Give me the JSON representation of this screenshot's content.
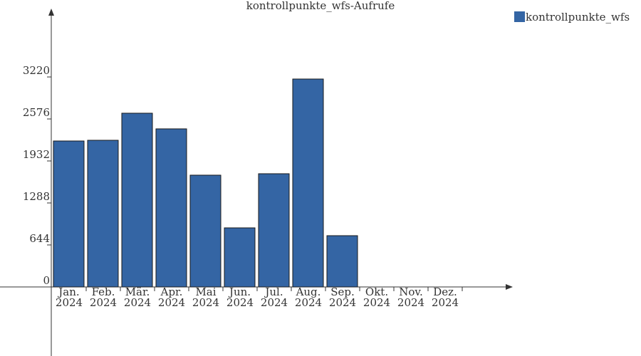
{
  "chart_data": {
    "type": "bar",
    "title": "kontrollpunkte_wfs-Aufrufe",
    "categories": [
      "Jan.\n2024",
      "Feb.\n2024",
      "Mär.\n2024",
      "Apr.\n2024",
      "Mai\n2024",
      "Jun.\n2024",
      "Jul.\n2024",
      "Aug.\n2024",
      "Sep.\n2024",
      "Okt.\n2024",
      "Nov.\n2024",
      "Dez.\n2024"
    ],
    "series": [
      {
        "name": "kontrollpunkte_wfs",
        "color": "#3465a4",
        "values": [
          2238,
          2249,
          2664,
          2424,
          1714,
          906,
          1736,
          3188,
          786,
          null,
          null,
          null
        ]
      }
    ],
    "ylim": [
      -1059,
      4236
    ],
    "yticks": [
      0,
      644,
      1288,
      1932,
      2576,
      3220
    ],
    "legend": "top-right"
  }
}
